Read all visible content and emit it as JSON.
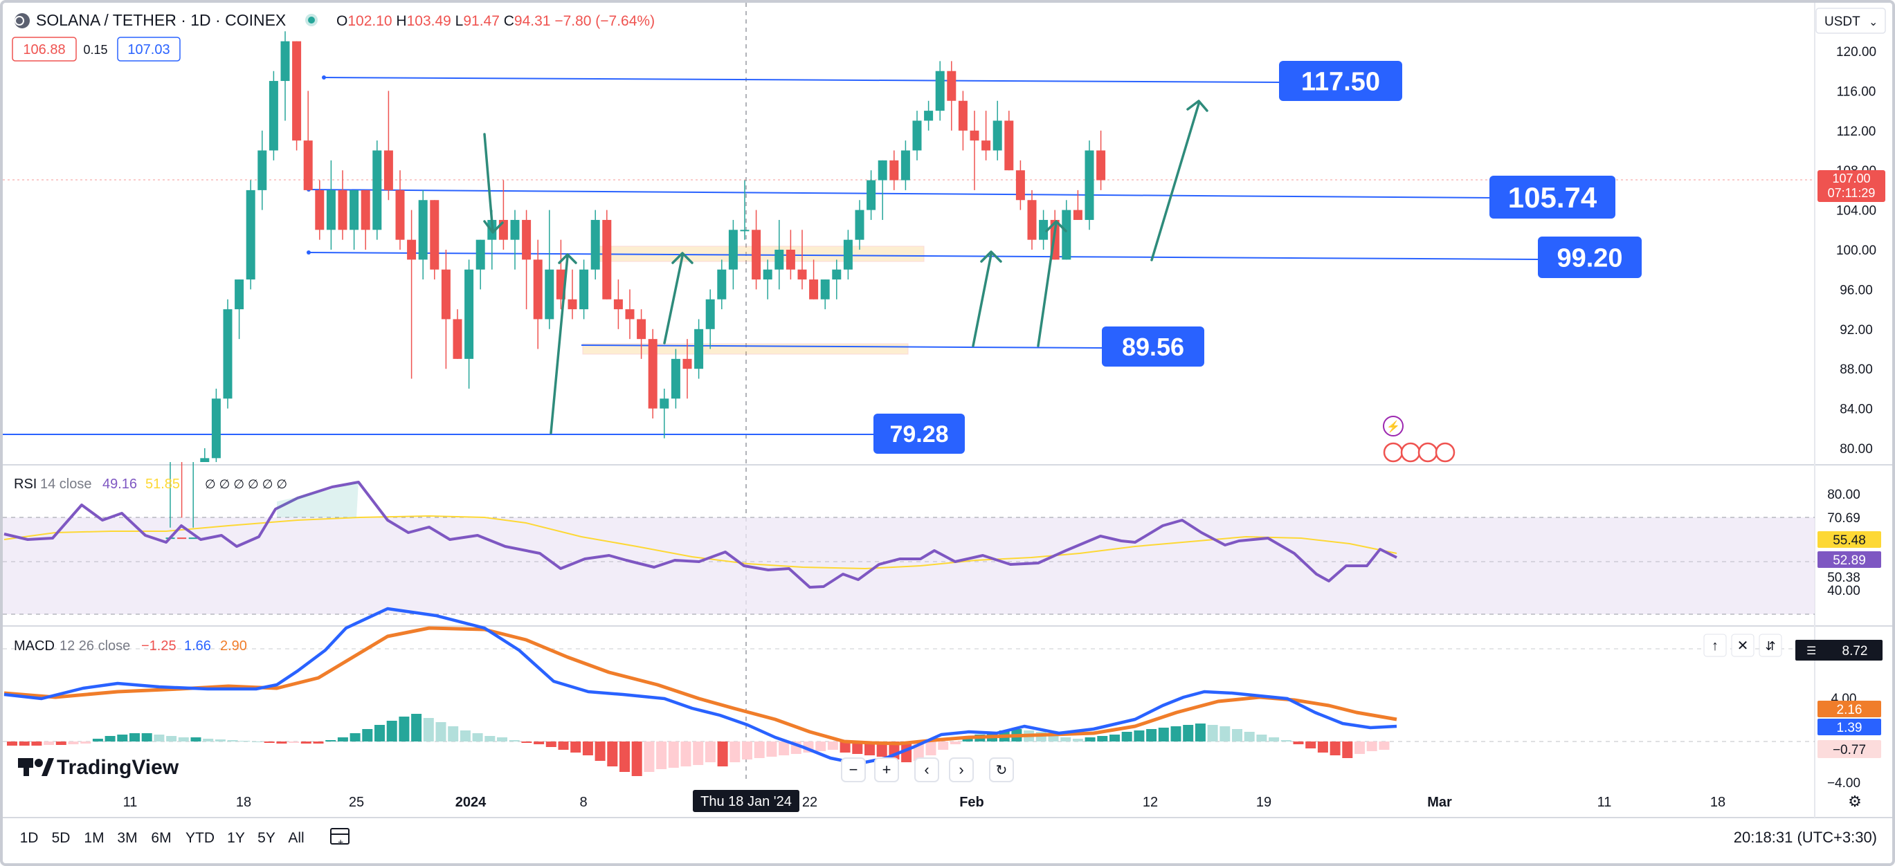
{
  "symbol": {
    "title": "SOLANA / TETHER · 1D · COINEX",
    "ohlc": [
      {
        "k": "O",
        "v": "102.10"
      },
      {
        "k": "H",
        "v": "103.49"
      },
      {
        "k": "L",
        "v": "91.47"
      },
      {
        "k": "C",
        "v": "94.31"
      }
    ],
    "change": "−7.80 (−7.64%)",
    "bid": "106.88",
    "spread": "0.15",
    "ask": "107.03"
  },
  "currency": "USDT",
  "price_axis": {
    "ticks": [
      "120.00",
      "116.00",
      "112.00",
      "108.00",
      "104.00",
      "100.00",
      "96.00",
      "92.00",
      "88.00",
      "84.00",
      "80.00"
    ],
    "current_price": "107.00",
    "countdown": "07:11:29"
  },
  "level_labels": [
    "117.50",
    "105.74",
    "99.20",
    "89.56",
    "79.28"
  ],
  "rsi": {
    "label": "RSI",
    "params": "14 close",
    "value": "49.16",
    "ma_value": "51.85",
    "ticks": [
      "80.00",
      "70.69",
      "50.38",
      "40.00"
    ],
    "badge_ma": "55.48",
    "badge_rsi": "52.89"
  },
  "macd": {
    "label": "MACD",
    "params": "12 26 close",
    "hist_value": "−1.25",
    "macd_value": "1.66",
    "signal_value": "2.90",
    "ticks": [
      "4.00",
      "−4.00"
    ],
    "top_badge": "8.72",
    "badge_signal": "2.16",
    "badge_macd": "1.39",
    "badge_hist": "−0.77"
  },
  "time_axis": {
    "labels": [
      "11",
      "18",
      "25",
      "2024",
      "8",
      "22",
      "Feb",
      "12",
      "19",
      "Mar",
      "11",
      "18"
    ],
    "crosshair_label": "Thu 18 Jan '24"
  },
  "brand": "TradingView",
  "timeframes": [
    "1D",
    "5D",
    "1M",
    "3M",
    "6M",
    "YTD",
    "1Y",
    "5Y",
    "All"
  ],
  "clock": "20:18:31 (UTC+3:30)",
  "colors": {
    "up": "#26a69a",
    "down": "#ef5350",
    "line": "#2962ff",
    "rsi": "#7e57c2",
    "rsi_ma": "#fdd835",
    "macd_line": "#2962ff",
    "signal_line": "#ff6d00"
  },
  "chart_data": {
    "type": "candlestick",
    "series_candles": [
      {
        "o": 70,
        "h": 72,
        "l": 68,
        "c": 71
      },
      {
        "o": 71,
        "h": 73,
        "l": 69,
        "c": 70
      },
      {
        "o": 70,
        "h": 72,
        "l": 68,
        "c": 71
      },
      {
        "o": 75,
        "h": 80,
        "l": 74,
        "c": 79
      },
      {
        "o": 79,
        "h": 86,
        "l": 78,
        "c": 85
      },
      {
        "o": 85,
        "h": 95,
        "l": 84,
        "c": 94
      },
      {
        "o": 94,
        "h": 97,
        "l": 91,
        "c": 97
      },
      {
        "o": 97,
        "h": 107,
        "l": 96,
        "c": 106
      },
      {
        "o": 106,
        "h": 112,
        "l": 104,
        "c": 110
      },
      {
        "o": 110,
        "h": 118,
        "l": 109,
        "c": 117
      },
      {
        "o": 117,
        "h": 122,
        "l": 113,
        "c": 121
      },
      {
        "o": 121,
        "h": 121,
        "l": 110,
        "c": 111
      },
      {
        "o": 111,
        "h": 116,
        "l": 106,
        "c": 106
      },
      {
        "o": 106,
        "h": 107,
        "l": 101,
        "c": 102
      },
      {
        "o": 102,
        "h": 109,
        "l": 100,
        "c": 106
      },
      {
        "o": 106,
        "h": 108,
        "l": 101,
        "c": 102
      },
      {
        "o": 102,
        "h": 106,
        "l": 100,
        "c": 106
      },
      {
        "o": 106,
        "h": 106,
        "l": 100,
        "c": 102
      },
      {
        "o": 102,
        "h": 111,
        "l": 101,
        "c": 110
      },
      {
        "o": 110,
        "h": 116,
        "l": 105,
        "c": 106
      },
      {
        "o": 106,
        "h": 108,
        "l": 100,
        "c": 101
      },
      {
        "o": 101,
        "h": 104,
        "l": 87,
        "c": 99
      },
      {
        "o": 99,
        "h": 106,
        "l": 97,
        "c": 105
      },
      {
        "o": 105,
        "h": 105,
        "l": 97,
        "c": 98
      },
      {
        "o": 98,
        "h": 100,
        "l": 88,
        "c": 93
      },
      {
        "o": 93,
        "h": 94,
        "l": 89,
        "c": 89
      },
      {
        "o": 89,
        "h": 99,
        "l": 86,
        "c": 98
      },
      {
        "o": 98,
        "h": 101,
        "l": 96,
        "c": 101
      },
      {
        "o": 101,
        "h": 104,
        "l": 98,
        "c": 103
      },
      {
        "o": 103,
        "h": 107,
        "l": 100,
        "c": 101
      },
      {
        "o": 101,
        "h": 104,
        "l": 98,
        "c": 103
      },
      {
        "o": 103,
        "h": 104,
        "l": 94,
        "c": 99
      },
      {
        "o": 99,
        "h": 101,
        "l": 90,
        "c": 93
      },
      {
        "o": 93,
        "h": 104,
        "l": 92,
        "c": 98
      },
      {
        "o": 98,
        "h": 101,
        "l": 94,
        "c": 95
      },
      {
        "o": 95,
        "h": 98,
        "l": 93,
        "c": 94
      },
      {
        "o": 94,
        "h": 99,
        "l": 93,
        "c": 98
      },
      {
        "o": 98,
        "h": 104,
        "l": 97,
        "c": 103
      },
      {
        "o": 103,
        "h": 104,
        "l": 95,
        "c": 95
      },
      {
        "o": 95,
        "h": 97,
        "l": 92,
        "c": 94
      },
      {
        "o": 94,
        "h": 96,
        "l": 91,
        "c": 93
      },
      {
        "o": 93,
        "h": 94,
        "l": 89,
        "c": 91
      },
      {
        "o": 91,
        "h": 92,
        "l": 83,
        "c": 84
      },
      {
        "o": 84,
        "h": 86,
        "l": 81,
        "c": 85
      },
      {
        "o": 85,
        "h": 90,
        "l": 84,
        "c": 89
      },
      {
        "o": 89,
        "h": 91,
        "l": 85,
        "c": 88
      },
      {
        "o": 88,
        "h": 93,
        "l": 87,
        "c": 92
      },
      {
        "o": 92,
        "h": 96,
        "l": 90,
        "c": 95
      },
      {
        "o": 95,
        "h": 99,
        "l": 94,
        "c": 98
      },
      {
        "o": 98,
        "h": 103,
        "l": 96,
        "c": 102
      },
      {
        "o": 102,
        "h": 107,
        "l": 101,
        "c": 102
      },
      {
        "o": 102,
        "h": 104,
        "l": 96,
        "c": 97
      },
      {
        "o": 97,
        "h": 99,
        "l": 95,
        "c": 98
      },
      {
        "o": 98,
        "h": 103,
        "l": 96,
        "c": 100
      },
      {
        "o": 100,
        "h": 102,
        "l": 97,
        "c": 98
      },
      {
        "o": 98,
        "h": 102,
        "l": 96,
        "c": 97
      },
      {
        "o": 97,
        "h": 99,
        "l": 95,
        "c": 95
      },
      {
        "o": 95,
        "h": 97,
        "l": 94,
        "c": 97
      },
      {
        "o": 97,
        "h": 99,
        "l": 95,
        "c": 98
      },
      {
        "o": 98,
        "h": 102,
        "l": 97,
        "c": 101
      },
      {
        "o": 101,
        "h": 105,
        "l": 100,
        "c": 104
      },
      {
        "o": 104,
        "h": 108,
        "l": 103,
        "c": 107
      },
      {
        "o": 107,
        "h": 109,
        "l": 103,
        "c": 109
      },
      {
        "o": 109,
        "h": 110,
        "l": 106,
        "c": 107
      },
      {
        "o": 107,
        "h": 111,
        "l": 106,
        "c": 110
      },
      {
        "o": 110,
        "h": 114,
        "l": 109,
        "c": 113
      },
      {
        "o": 113,
        "h": 115,
        "l": 112,
        "c": 114
      },
      {
        "o": 114,
        "h": 119,
        "l": 113,
        "c": 118
      },
      {
        "o": 118,
        "h": 119,
        "l": 112,
        "c": 115
      },
      {
        "o": 115,
        "h": 116,
        "l": 110,
        "c": 112
      },
      {
        "o": 112,
        "h": 114,
        "l": 106,
        "c": 111
      },
      {
        "o": 111,
        "h": 114,
        "l": 109,
        "c": 110
      },
      {
        "o": 110,
        "h": 115,
        "l": 109,
        "c": 113
      },
      {
        "o": 113,
        "h": 114,
        "l": 108,
        "c": 108
      },
      {
        "o": 108,
        "h": 109,
        "l": 104,
        "c": 105
      },
      {
        "o": 105,
        "h": 106,
        "l": 100,
        "c": 101
      },
      {
        "o": 101,
        "h": 104,
        "l": 100,
        "c": 103
      },
      {
        "o": 103,
        "h": 104,
        "l": 99,
        "c": 99
      },
      {
        "o": 99,
        "h": 105,
        "l": 99,
        "c": 104
      },
      {
        "o": 104,
        "h": 106,
        "l": 103,
        "c": 103
      },
      {
        "o": 103,
        "h": 111,
        "l": 102,
        "c": 110
      },
      {
        "o": 110,
        "h": 112,
        "l": 106,
        "c": 107
      }
    ],
    "levels": [
      117.5,
      105.74,
      99.2,
      89.56,
      79.28
    ],
    "ylim": [
      77,
      123
    ]
  }
}
